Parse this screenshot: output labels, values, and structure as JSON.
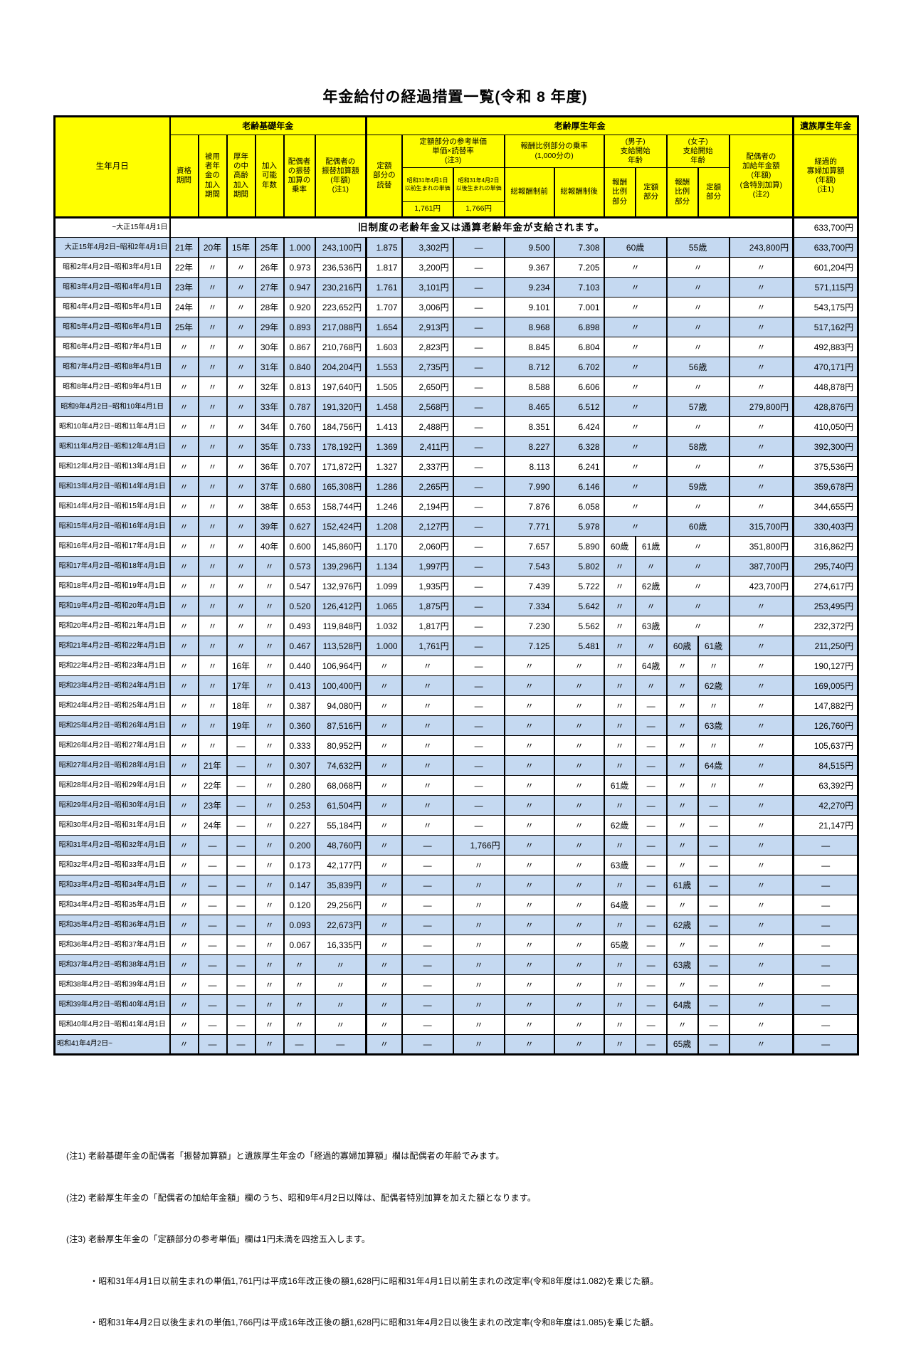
{
  "title": "年金給付の経過措置一覧(令和 8 年度)",
  "colors": {
    "header_bg": "#FFFF00",
    "stripe_bg": "#C5D9F1"
  },
  "header": {
    "birth": "生年月日",
    "group_kiso": "老齢基礎年金",
    "group_kosei": "老齢厚生年金",
    "group_izoku": "遺族厚生年金",
    "shikaku": "資格\n期間",
    "hiyosha": "被用\n者年\n金の\n加入\n期間",
    "konen": "厚年\nの中\n高齢\n加入\n期間",
    "kanyu": "加入\n可能\n年数",
    "joritsu": "配偶者\nの振替\n加算の\n乗率",
    "furikae": "配偶者の\n振替加算額\n(年額)\n(注1)",
    "yomikae": "定額\n部分の\n読替",
    "tanka_group": "定額部分の参考単価\n単価×読替率\n(注3)",
    "tanka_mae_label": "昭和31年4月1日\n以前生まれの単価",
    "tanka_ato_label": "昭和31年4月2日\n以後生まれの単価",
    "tanka_mae_price": "1,761円",
    "tanka_ato_price": "1,766円",
    "hoshu_group": "報酬比例部分の乗率\n(1,000分の)",
    "soho_mae": "総報酬制前",
    "soho_ato": "総報酬制後",
    "danshi_group": "(男子)\n支給開始\n年齢",
    "joshi_group": "(女子)\n支給開始\n年齢",
    "hoshu_sub": "報酬\n比例\n部分",
    "teigaku_sub": "定額\n部分",
    "kakyu": "配偶者の\n加給年金額\n(年額)\n(含特別加算)\n(注2)",
    "kafu": "経過的\n寡婦加算額\n(年額)\n(注1)"
  },
  "old_system_row": {
    "date": "~大正15年4月1日",
    "text": "旧制度の老齢年金又は通算老齢年金が支給されます。",
    "kafu": "633,700円"
  },
  "rows": [
    {
      "d": "大正15年4月2日~昭和2年4月1日",
      "c": [
        "21年",
        "20年",
        "15年",
        "25年",
        "1.000",
        "243,100円",
        "1.875",
        "3,302円",
        "—",
        "9.500",
        "7.308",
        [
          "60歳",
          2
        ],
        [
          "55歳",
          2
        ],
        "243,800円",
        "633,700円"
      ]
    },
    {
      "d": "昭和2年4月2日~昭和3年4月1日",
      "c": [
        "22年",
        "〃",
        "〃",
        "26年",
        "0.973",
        "236,536円",
        "1.817",
        "3,200円",
        "—",
        "9.367",
        "7.205",
        [
          "〃",
          2
        ],
        [
          "〃",
          2
        ],
        "〃",
        "601,204円"
      ]
    },
    {
      "d": "昭和3年4月2日~昭和4年4月1日",
      "c": [
        "23年",
        "〃",
        "〃",
        "27年",
        "0.947",
        "230,216円",
        "1.761",
        "3,101円",
        "—",
        "9.234",
        "7.103",
        [
          "〃",
          2
        ],
        [
          "〃",
          2
        ],
        "〃",
        "571,115円"
      ]
    },
    {
      "d": "昭和4年4月2日~昭和5年4月1日",
      "c": [
        "24年",
        "〃",
        "〃",
        "28年",
        "0.920",
        "223,652円",
        "1.707",
        "3,006円",
        "—",
        "9.101",
        "7.001",
        [
          "〃",
          2
        ],
        [
          "〃",
          2
        ],
        "〃",
        "543,175円"
      ]
    },
    {
      "d": "昭和5年4月2日~昭和6年4月1日",
      "c": [
        "25年",
        "〃",
        "〃",
        "29年",
        "0.893",
        "217,088円",
        "1.654",
        "2,913円",
        "—",
        "8.968",
        "6.898",
        [
          "〃",
          2
        ],
        [
          "〃",
          2
        ],
        "〃",
        "517,162円"
      ]
    },
    {
      "d": "昭和6年4月2日~昭和7年4月1日",
      "c": [
        "〃",
        "〃",
        "〃",
        "30年",
        "0.867",
        "210,768円",
        "1.603",
        "2,823円",
        "—",
        "8.845",
        "6.804",
        [
          "〃",
          2
        ],
        [
          "〃",
          2
        ],
        "〃",
        "492,883円"
      ]
    },
    {
      "d": "昭和7年4月2日~昭和8年4月1日",
      "c": [
        "〃",
        "〃",
        "〃",
        "31年",
        "0.840",
        "204,204円",
        "1.553",
        "2,735円",
        "—",
        "8.712",
        "6.702",
        [
          "〃",
          2
        ],
        [
          "56歳",
          2
        ],
        "〃",
        "470,171円"
      ]
    },
    {
      "d": "昭和8年4月2日~昭和9年4月1日",
      "c": [
        "〃",
        "〃",
        "〃",
        "32年",
        "0.813",
        "197,640円",
        "1.505",
        "2,650円",
        "—",
        "8.588",
        "6.606",
        [
          "〃",
          2
        ],
        [
          "〃",
          2
        ],
        "〃",
        "448,878円"
      ]
    },
    {
      "d": "昭和9年4月2日~昭和10年4月1日",
      "c": [
        "〃",
        "〃",
        "〃",
        "33年",
        "0.787",
        "191,320円",
        "1.458",
        "2,568円",
        "—",
        "8.465",
        "6.512",
        [
          "〃",
          2
        ],
        [
          "57歳",
          2
        ],
        "279,800円",
        "428,876円"
      ]
    },
    {
      "d": "昭和10年4月2日~昭和11年4月1日",
      "c": [
        "〃",
        "〃",
        "〃",
        "34年",
        "0.760",
        "184,756円",
        "1.413",
        "2,488円",
        "—",
        "8.351",
        "6.424",
        [
          "〃",
          2
        ],
        [
          "〃",
          2
        ],
        "〃",
        "410,050円"
      ]
    },
    {
      "d": "昭和11年4月2日~昭和12年4月1日",
      "c": [
        "〃",
        "〃",
        "〃",
        "35年",
        "0.733",
        "178,192円",
        "1.369",
        "2,411円",
        "—",
        "8.227",
        "6.328",
        [
          "〃",
          2
        ],
        [
          "58歳",
          2
        ],
        "〃",
        "392,300円"
      ]
    },
    {
      "d": "昭和12年4月2日~昭和13年4月1日",
      "c": [
        "〃",
        "〃",
        "〃",
        "36年",
        "0.707",
        "171,872円",
        "1.327",
        "2,337円",
        "—",
        "8.113",
        "6.241",
        [
          "〃",
          2
        ],
        [
          "〃",
          2
        ],
        "〃",
        "375,536円"
      ]
    },
    {
      "d": "昭和13年4月2日~昭和14年4月1日",
      "c": [
        "〃",
        "〃",
        "〃",
        "37年",
        "0.680",
        "165,308円",
        "1.286",
        "2,265円",
        "—",
        "7.990",
        "6.146",
        [
          "〃",
          2
        ],
        [
          "59歳",
          2
        ],
        "〃",
        "359,678円"
      ]
    },
    {
      "d": "昭和14年4月2日~昭和15年4月1日",
      "c": [
        "〃",
        "〃",
        "〃",
        "38年",
        "0.653",
        "158,744円",
        "1.246",
        "2,194円",
        "—",
        "7.876",
        "6.058",
        [
          "〃",
          2
        ],
        [
          "〃",
          2
        ],
        "〃",
        "344,655円"
      ]
    },
    {
      "d": "昭和15年4月2日~昭和16年4月1日",
      "c": [
        "〃",
        "〃",
        "〃",
        "39年",
        "0.627",
        "152,424円",
        "1.208",
        "2,127円",
        "—",
        "7.771",
        "5.978",
        [
          "〃",
          2
        ],
        [
          "60歳",
          2
        ],
        "315,700円",
        "330,403円"
      ]
    },
    {
      "d": "昭和16年4月2日~昭和17年4月1日",
      "c": [
        "〃",
        "〃",
        "〃",
        "40年",
        "0.600",
        "145,860円",
        "1.170",
        "2,060円",
        "—",
        "7.657",
        "5.890",
        "60歳",
        "61歳",
        [
          "〃",
          2
        ],
        "351,800円",
        "316,862円"
      ]
    },
    {
      "d": "昭和17年4月2日~昭和18年4月1日",
      "c": [
        "〃",
        "〃",
        "〃",
        "〃",
        "0.573",
        "139,296円",
        "1.134",
        "1,997円",
        "—",
        "7.543",
        "5.802",
        "〃",
        "〃",
        [
          "〃",
          2
        ],
        "387,700円",
        "295,740円"
      ]
    },
    {
      "d": "昭和18年4月2日~昭和19年4月1日",
      "c": [
        "〃",
        "〃",
        "〃",
        "〃",
        "0.547",
        "132,976円",
        "1.099",
        "1,935円",
        "—",
        "7.439",
        "5.722",
        "〃",
        "62歳",
        [
          "〃",
          2
        ],
        "423,700円",
        "274,617円"
      ]
    },
    {
      "d": "昭和19年4月2日~昭和20年4月1日",
      "c": [
        "〃",
        "〃",
        "〃",
        "〃",
        "0.520",
        "126,412円",
        "1.065",
        "1,875円",
        "—",
        "7.334",
        "5.642",
        "〃",
        "〃",
        [
          "〃",
          2
        ],
        "〃",
        "253,495円"
      ]
    },
    {
      "d": "昭和20年4月2日~昭和21年4月1日",
      "c": [
        "〃",
        "〃",
        "〃",
        "〃",
        "0.493",
        "119,848円",
        "1.032",
        "1,817円",
        "—",
        "7.230",
        "5.562",
        "〃",
        "63歳",
        [
          "〃",
          2
        ],
        "〃",
        "232,372円"
      ]
    },
    {
      "d": "昭和21年4月2日~昭和22年4月1日",
      "c": [
        "〃",
        "〃",
        "〃",
        "〃",
        "0.467",
        "113,528円",
        "1.000",
        "1,761円",
        "—",
        "7.125",
        "5.481",
        "〃",
        "〃",
        "60歳",
        "61歳",
        "〃",
        "211,250円"
      ]
    },
    {
      "d": "昭和22年4月2日~昭和23年4月1日",
      "c": [
        "〃",
        "〃",
        "16年",
        "〃",
        "0.440",
        "106,964円",
        "〃",
        "〃",
        "—",
        "〃",
        "〃",
        "〃",
        "64歳",
        "〃",
        "〃",
        "〃",
        "190,127円"
      ]
    },
    {
      "d": "昭和23年4月2日~昭和24年4月1日",
      "c": [
        "〃",
        "〃",
        "17年",
        "〃",
        "0.413",
        "100,400円",
        "〃",
        "〃",
        "—",
        "〃",
        "〃",
        "〃",
        "〃",
        "〃",
        "62歳",
        "〃",
        "169,005円"
      ]
    },
    {
      "d": "昭和24年4月2日~昭和25年4月1日",
      "c": [
        "〃",
        "〃",
        "18年",
        "〃",
        "0.387",
        "94,080円",
        "〃",
        "〃",
        "—",
        "〃",
        "〃",
        "〃",
        "—",
        "〃",
        "〃",
        "〃",
        "147,882円"
      ]
    },
    {
      "d": "昭和25年4月2日~昭和26年4月1日",
      "c": [
        "〃",
        "〃",
        "19年",
        "〃",
        "0.360",
        "87,516円",
        "〃",
        "〃",
        "—",
        "〃",
        "〃",
        "〃",
        "—",
        "〃",
        "63歳",
        "〃",
        "126,760円"
      ]
    },
    {
      "d": "昭和26年4月2日~昭和27年4月1日",
      "c": [
        "〃",
        "〃",
        "—",
        "〃",
        "0.333",
        "80,952円",
        "〃",
        "〃",
        "—",
        "〃",
        "〃",
        "〃",
        "—",
        "〃",
        "〃",
        "〃",
        "105,637円"
      ]
    },
    {
      "d": "昭和27年4月2日~昭和28年4月1日",
      "c": [
        "〃",
        "21年",
        "—",
        "〃",
        "0.307",
        "74,632円",
        "〃",
        "〃",
        "—",
        "〃",
        "〃",
        "〃",
        "—",
        "〃",
        "64歳",
        "〃",
        "84,515円"
      ]
    },
    {
      "d": "昭和28年4月2日~昭和29年4月1日",
      "c": [
        "〃",
        "22年",
        "—",
        "〃",
        "0.280",
        "68,068円",
        "〃",
        "〃",
        "—",
        "〃",
        "〃",
        "61歳",
        "—",
        "〃",
        "〃",
        "〃",
        "63,392円"
      ]
    },
    {
      "d": "昭和29年4月2日~昭和30年4月1日",
      "c": [
        "〃",
        "23年",
        "—",
        "〃",
        "0.253",
        "61,504円",
        "〃",
        "〃",
        "—",
        "〃",
        "〃",
        "〃",
        "—",
        "〃",
        "—",
        "〃",
        "42,270円"
      ]
    },
    {
      "d": "昭和30年4月2日~昭和31年4月1日",
      "c": [
        "〃",
        "24年",
        "—",
        "〃",
        "0.227",
        "55,184円",
        "〃",
        "〃",
        "—",
        "〃",
        "〃",
        "62歳",
        "—",
        "〃",
        "—",
        "〃",
        "21,147円"
      ]
    },
    {
      "d": "昭和31年4月2日~昭和32年4月1日",
      "c": [
        "〃",
        "—",
        "—",
        "〃",
        "0.200",
        "48,760円",
        "〃",
        "—",
        "1,766円",
        "〃",
        "〃",
        "〃",
        "—",
        "〃",
        "—",
        "〃",
        "—"
      ]
    },
    {
      "d": "昭和32年4月2日~昭和33年4月1日",
      "c": [
        "〃",
        "—",
        "—",
        "〃",
        "0.173",
        "42,177円",
        "〃",
        "—",
        "〃",
        "〃",
        "〃",
        "63歳",
        "—",
        "〃",
        "—",
        "〃",
        "—"
      ]
    },
    {
      "d": "昭和33年4月2日~昭和34年4月1日",
      "c": [
        "〃",
        "—",
        "—",
        "〃",
        "0.147",
        "35,839円",
        "〃",
        "—",
        "〃",
        "〃",
        "〃",
        "〃",
        "—",
        "61歳",
        "—",
        "〃",
        "—"
      ]
    },
    {
      "d": "昭和34年4月2日~昭和35年4月1日",
      "c": [
        "〃",
        "—",
        "—",
        "〃",
        "0.120",
        "29,256円",
        "〃",
        "—",
        "〃",
        "〃",
        "〃",
        "64歳",
        "—",
        "〃",
        "—",
        "〃",
        "—"
      ]
    },
    {
      "d": "昭和35年4月2日~昭和36年4月1日",
      "c": [
        "〃",
        "—",
        "—",
        "〃",
        "0.093",
        "22,673円",
        "〃",
        "—",
        "〃",
        "〃",
        "〃",
        "〃",
        "—",
        "62歳",
        "—",
        "〃",
        "—"
      ]
    },
    {
      "d": "昭和36年4月2日~昭和37年4月1日",
      "c": [
        "〃",
        "—",
        "—",
        "〃",
        "0.067",
        "16,335円",
        "〃",
        "—",
        "〃",
        "〃",
        "〃",
        "65歳",
        "—",
        "〃",
        "—",
        "〃",
        "—"
      ]
    },
    {
      "d": "昭和37年4月2日~昭和38年4月1日",
      "c": [
        "〃",
        "—",
        "—",
        "〃",
        "〃",
        "〃",
        "〃",
        "—",
        "〃",
        "〃",
        "〃",
        "〃",
        "—",
        "63歳",
        "—",
        "〃",
        "—"
      ]
    },
    {
      "d": "昭和38年4月2日~昭和39年4月1日",
      "c": [
        "〃",
        "—",
        "—",
        "〃",
        "〃",
        "〃",
        "〃",
        "—",
        "〃",
        "〃",
        "〃",
        "〃",
        "—",
        "〃",
        "—",
        "〃",
        "—"
      ]
    },
    {
      "d": "昭和39年4月2日~昭和40年4月1日",
      "c": [
        "〃",
        "—",
        "—",
        "〃",
        "〃",
        "〃",
        "〃",
        "—",
        "〃",
        "〃",
        "〃",
        "〃",
        "—",
        "64歳",
        "—",
        "〃",
        "—"
      ]
    },
    {
      "d": "昭和40年4月2日~昭和41年4月1日",
      "c": [
        "〃",
        "—",
        "—",
        "〃",
        "〃",
        "〃",
        "〃",
        "—",
        "〃",
        "〃",
        "〃",
        "〃",
        "—",
        "〃",
        "—",
        "〃",
        "—"
      ]
    },
    {
      "d": "昭和41年4月2日~",
      "c": [
        "〃",
        "—",
        "—",
        "〃",
        "—",
        "—",
        "〃",
        "—",
        "〃",
        "〃",
        "〃",
        "〃",
        "—",
        "65歳",
        "—",
        "〃",
        "—"
      ]
    }
  ],
  "notes": [
    "(注1) 老齢基礎年金の配偶者「振替加算額」と遺族厚生年金の「経過的寡婦加算額」欄は配偶者の年齢でみます。",
    "(注2) 老齢厚生年金の「配偶者の加給年金額」欄のうち、昭和9年4月2日以降は、配偶者特別加算を加えた額となります。",
    "(注3) 老齢厚生年金の「定額部分の参考単価」欄は1円未満を四捨五入します。",
    "・昭和31年4月1日以前生まれの単価1,761円は平成16年改正後の額1,628円に昭和31年4月1日以前生まれの改定率(令和8年度は1.082)を乗じた額。",
    "・昭和31年4月2日以後生まれの単価1,766円は平成16年改正後の額1,628円に昭和31年4月2日以後生まれの改定率(令和8年度は1.085)を乗じた額。"
  ]
}
